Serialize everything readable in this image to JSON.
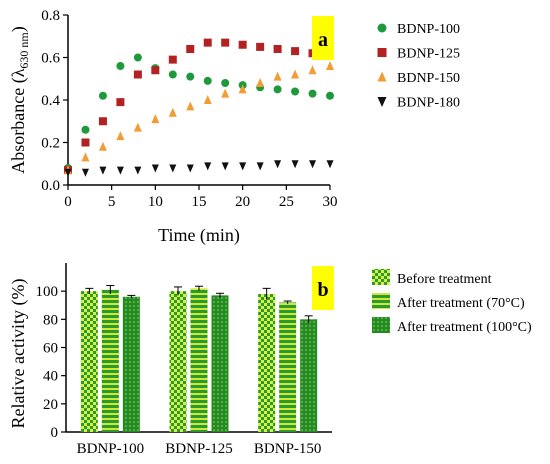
{
  "chart_data": [
    {
      "panel": "a",
      "type": "scatter",
      "xlabel": "Time (min)",
      "ylabel": "Absorbance (λ630 nm)",
      "ylabel_main": "Absorbance (λ",
      "ylabel_sub": "630 nm",
      "ylabel_close": ")",
      "xlim": [
        0,
        30
      ],
      "ylim": [
        0,
        0.8
      ],
      "xticks": [
        "0",
        "5",
        "10",
        "15",
        "20",
        "25",
        "30"
      ],
      "yticks": [
        "0.0",
        "0.2",
        "0.4",
        "0.6",
        "0.8"
      ],
      "legend_position": "right",
      "series": [
        {
          "name": "BDNP-100",
          "marker": "circle",
          "color": "#1e9a3c",
          "x": [
            0,
            2,
            4,
            6,
            8,
            10,
            12,
            14,
            16,
            18,
            20,
            22,
            24,
            26,
            28,
            30
          ],
          "y": [
            0.08,
            0.26,
            0.42,
            0.56,
            0.6,
            0.55,
            0.52,
            0.51,
            0.49,
            0.48,
            0.47,
            0.46,
            0.45,
            0.44,
            0.43,
            0.42
          ]
        },
        {
          "name": "BDNP-125",
          "marker": "square",
          "color": "#b22222",
          "x": [
            0,
            2,
            4,
            6,
            8,
            10,
            12,
            14,
            16,
            18,
            20,
            22,
            24,
            26,
            28,
            30
          ],
          "y": [
            0.07,
            0.2,
            0.3,
            0.39,
            0.52,
            0.54,
            0.59,
            0.64,
            0.67,
            0.67,
            0.66,
            0.65,
            0.64,
            0.63,
            0.62,
            0.61
          ]
        },
        {
          "name": "BDNP-150",
          "marker": "triangle-up",
          "color": "#f39c34",
          "x": [
            0,
            2,
            4,
            6,
            8,
            10,
            12,
            14,
            16,
            18,
            20,
            22,
            24,
            26,
            28,
            30
          ],
          "y": [
            0.07,
            0.13,
            0.18,
            0.23,
            0.27,
            0.31,
            0.34,
            0.37,
            0.4,
            0.43,
            0.45,
            0.48,
            0.51,
            0.52,
            0.54,
            0.56
          ]
        },
        {
          "name": "BDNP-180",
          "marker": "triangle-down",
          "color": "#111111",
          "x": [
            0,
            2,
            4,
            6,
            8,
            10,
            12,
            14,
            16,
            18,
            20,
            22,
            24,
            26,
            28,
            30
          ],
          "y": [
            0.06,
            0.06,
            0.07,
            0.07,
            0.07,
            0.08,
            0.08,
            0.08,
            0.09,
            0.09,
            0.09,
            0.09,
            0.1,
            0.1,
            0.1,
            0.1
          ]
        }
      ]
    },
    {
      "panel": "b",
      "type": "bar",
      "xlabel": "",
      "ylabel": "Relative activity (%)",
      "ylim": [
        0,
        120
      ],
      "yticks": [
        "0",
        "20",
        "40",
        "60",
        "80",
        "100"
      ],
      "categories": [
        "BDNP-100",
        "BDNP-125",
        "BDNP-150"
      ],
      "legend_position": "right",
      "series": [
        {
          "name": "Before treatment",
          "pattern": "checker",
          "values": [
            100,
            100,
            98
          ],
          "errors": [
            2,
            3,
            4
          ]
        },
        {
          "name": "After treatment (70°C)",
          "pattern": "horizontal-stripes",
          "values": [
            101,
            102,
            92
          ],
          "errors": [
            3,
            1.5,
            1
          ]
        },
        {
          "name": "After treatment (100°C)",
          "pattern": "dots",
          "values": [
            96,
            97,
            80
          ],
          "errors": [
            1,
            1.5,
            2.5
          ]
        }
      ]
    }
  ],
  "colors": {
    "tag_background": "#ffff00",
    "bar_fill_primary": "#2e9a2e",
    "bar_fill_light": "#d6f04a"
  }
}
